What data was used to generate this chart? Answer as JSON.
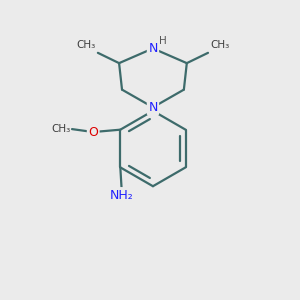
{
  "bg_color": "#ebebeb",
  "bond_color": "#3d6b6b",
  "N_color": "#2020ff",
  "O_color": "#dd0000",
  "text_color": "#3d3d3d",
  "H_color": "#555555",
  "font_size": 9.0,
  "small_font_size": 7.5,
  "line_width": 1.6,
  "figsize": [
    3.0,
    3.0
  ],
  "dpi": 100,
  "xlim": [
    0,
    10
  ],
  "ylim": [
    0,
    10
  ]
}
